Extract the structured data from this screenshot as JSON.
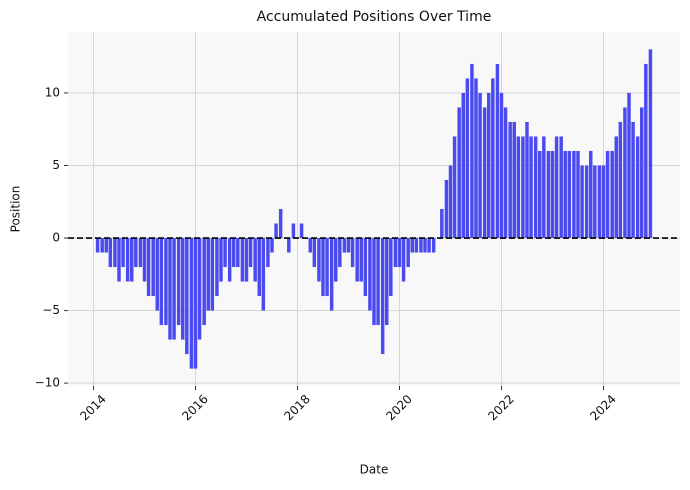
{
  "chart_data": {
    "type": "bar",
    "title": "Accumulated Positions Over Time",
    "x_label": "Date",
    "y_label": "Position",
    "color": "#4a4af0",
    "grid": true,
    "xlim": [
      2013.5,
      2025.5
    ],
    "xticks": [
      2014,
      2016,
      2018,
      2020,
      2022,
      2024
    ],
    "ylim": [
      -10.2,
      14.2
    ],
    "yticks": [
      {
        "value": -10,
        "label": "−10"
      },
      {
        "value": -5,
        "label": "−5"
      },
      0,
      5,
      10
    ],
    "x": [
      2014.0,
      2014.08,
      2014.17,
      2014.25,
      2014.33,
      2014.42,
      2014.5,
      2014.58,
      2014.67,
      2014.75,
      2014.83,
      2014.92,
      2015.0,
      2015.08,
      2015.17,
      2015.25,
      2015.33,
      2015.42,
      2015.5,
      2015.58,
      2015.67,
      2015.75,
      2015.83,
      2015.92,
      2016.0,
      2016.08,
      2016.17,
      2016.25,
      2016.33,
      2016.42,
      2016.5,
      2016.58,
      2016.67,
      2016.75,
      2016.83,
      2016.92,
      2017.0,
      2017.08,
      2017.17,
      2017.25,
      2017.33,
      2017.42,
      2017.5,
      2017.58,
      2017.67,
      2017.75,
      2017.83,
      2017.92,
      2018.0,
      2018.08,
      2018.17,
      2018.25,
      2018.33,
      2018.42,
      2018.5,
      2018.58,
      2018.67,
      2018.75,
      2018.83,
      2018.92,
      2019.0,
      2019.08,
      2019.17,
      2019.25,
      2019.33,
      2019.42,
      2019.5,
      2019.58,
      2019.67,
      2019.75,
      2019.83,
      2019.92,
      2020.0,
      2020.08,
      2020.17,
      2020.25,
      2020.33,
      2020.42,
      2020.5,
      2020.58,
      2020.67,
      2020.75,
      2020.83,
      2020.92,
      2021.0,
      2021.08,
      2021.17,
      2021.25,
      2021.33,
      2021.42,
      2021.5,
      2021.58,
      2021.67,
      2021.75,
      2021.83,
      2021.92,
      2022.0,
      2022.08,
      2022.17,
      2022.25,
      2022.33,
      2022.42,
      2022.5,
      2022.58,
      2022.67,
      2022.75,
      2022.83,
      2022.92,
      2023.0,
      2023.08,
      2023.17,
      2023.25,
      2023.33,
      2023.42,
      2023.5,
      2023.58,
      2023.67,
      2023.75,
      2023.83,
      2023.92,
      2024.0,
      2024.08,
      2024.17,
      2024.25,
      2024.33,
      2024.42,
      2024.5,
      2024.58,
      2024.67,
      2024.75,
      2024.83,
      2024.92
    ],
    "values": [
      0,
      -1,
      -1,
      -1,
      -2,
      -2,
      -3,
      -2,
      -3,
      -3,
      -2,
      -2,
      -3,
      -4,
      -4,
      -5,
      -6,
      -6,
      -7,
      -7,
      -6,
      -7,
      -8,
      -9,
      -9,
      -7,
      -6,
      -5,
      -5,
      -4,
      -3,
      -2,
      -3,
      -2,
      -2,
      -3,
      -3,
      -2,
      -3,
      -4,
      -5,
      -2,
      -1,
      1,
      2,
      0,
      -1,
      1,
      0,
      1,
      0,
      -1,
      -2,
      -3,
      -4,
      -4,
      -5,
      -3,
      -2,
      -1,
      -1,
      -2,
      -3,
      -3,
      -4,
      -5,
      -6,
      -6,
      -8,
      -6,
      -4,
      -2,
      -2,
      -3,
      -2,
      -1,
      -1,
      -1,
      -1,
      -1,
      -1,
      0,
      2,
      4,
      5,
      7,
      9,
      10,
      11,
      12,
      11,
      10,
      9,
      10,
      11,
      12,
      10,
      9,
      8,
      8,
      7,
      7,
      8,
      7,
      7,
      6,
      7,
      6,
      6,
      7,
      7,
      6,
      6,
      6,
      6,
      5,
      5,
      6,
      5,
      5,
      5,
      6,
      6,
      7,
      8,
      9,
      10,
      8,
      7,
      9,
      12,
      13
    ]
  }
}
